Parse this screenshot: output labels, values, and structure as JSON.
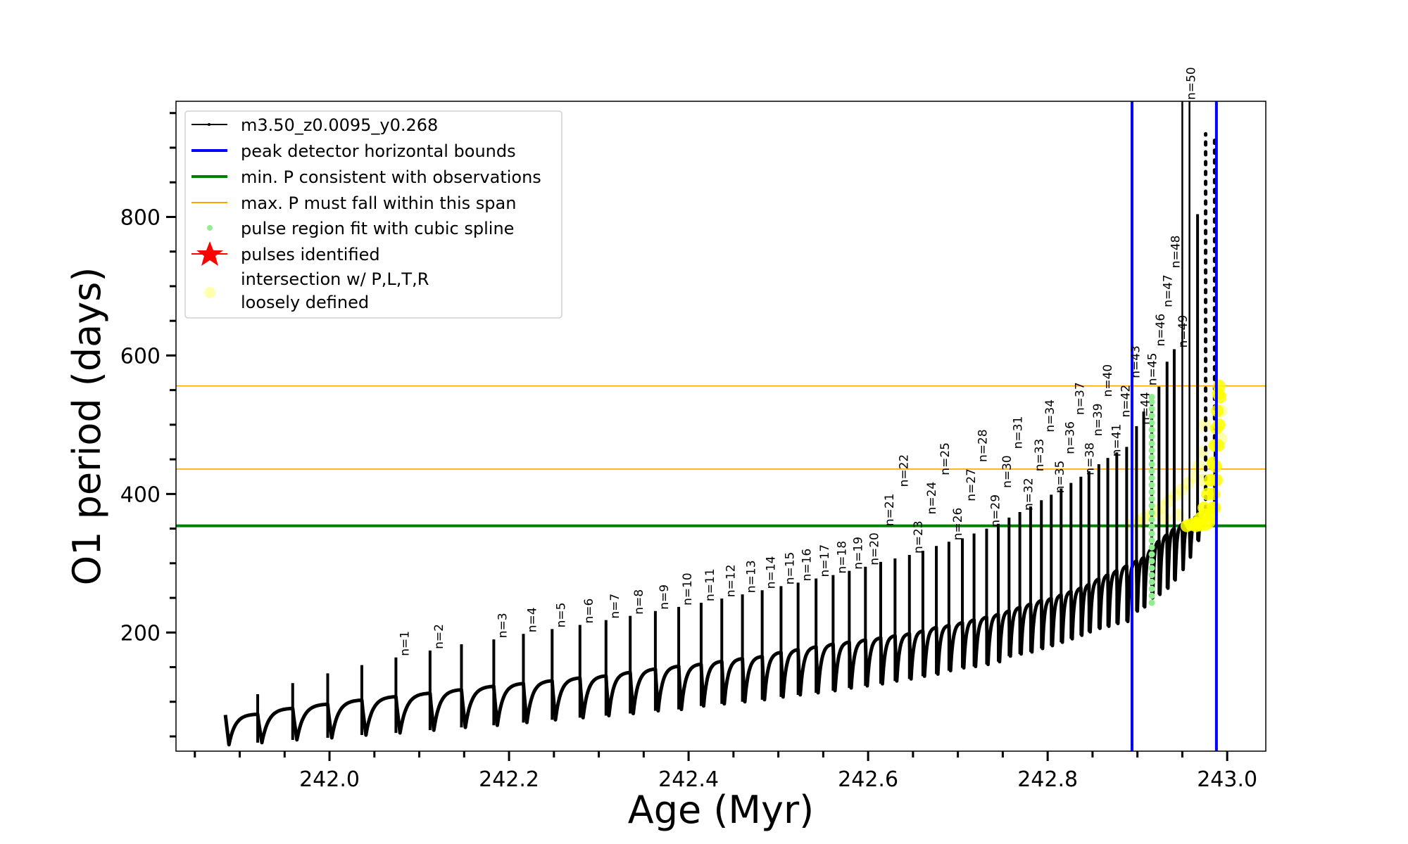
{
  "chart_data": {
    "type": "line",
    "xlabel": "Age (Myr)",
    "ylabel": "O1 period (days)",
    "xlim": [
      241.829,
      243.043
    ],
    "ylim": [
      28.7,
      967
    ],
    "grid": false,
    "legend_position": "top-left",
    "x_major_ticks": [
      242.0,
      242.2,
      242.4,
      242.6,
      242.8,
      243.0
    ],
    "x_tick_labels": [
      "242.0",
      "242.2",
      "242.4",
      "242.6",
      "242.8",
      "243.0"
    ],
    "x_minor_step": 0.05,
    "y_major_ticks": [
      200,
      400,
      600,
      800
    ],
    "y_tick_labels": [
      "200",
      "400",
      "600",
      "800"
    ],
    "y_minor_step": 50,
    "colors": {
      "model": "#000000",
      "bounds": "#0000ff",
      "min_p": "#008000",
      "max_p_span": "#ffa500",
      "spline": "#90ee90",
      "pulses": "#ff0000",
      "intersection": "#ffff00"
    },
    "legend": [
      {
        "label": "m3.50_z0.0095_y0.268",
        "marker": "line-dot",
        "color": "#000000"
      },
      {
        "label": "peak detector horizontal bounds",
        "marker": "thick-line",
        "color": "#0000ff"
      },
      {
        "label": "min. P consistent with observations",
        "marker": "thick-line",
        "color": "#008000"
      },
      {
        "label": "max. P must fall within this span",
        "marker": "thin-line",
        "color": "#ffa500"
      },
      {
        "label": "pulse region fit with cubic spline",
        "marker": "dot",
        "color": "#90ee90"
      },
      {
        "label": "pulses identified",
        "marker": "star",
        "color": "#ff0000"
      },
      {
        "label_lines": [
          "intersection w/ P,L,T,R",
          "loosely defined"
        ],
        "marker": "circle",
        "color": "#ffff99"
      }
    ],
    "vertical_bounds": [
      242.894,
      242.988
    ],
    "min_period": 354,
    "max_period_span": [
      436,
      556
    ],
    "model_start": {
      "t": 241.884,
      "value": 81,
      "trough": 38
    },
    "pulses": [
      {
        "t": 241.92,
        "plateau": 82.5,
        "peak": 111,
        "trough": 41,
        "label": ""
      },
      {
        "t": 241.959,
        "plateau": 91,
        "peak": 127,
        "trough": 45,
        "label": ""
      },
      {
        "t": 241.998,
        "plateau": 97,
        "peak": 141,
        "trough": 48,
        "label": ""
      },
      {
        "t": 242.036,
        "plateau": 103,
        "peak": 153,
        "trough": 52,
        "label": ""
      },
      {
        "t": 242.074,
        "plateau": 108,
        "peak": 164,
        "trough": 55,
        "label": "n=1"
      },
      {
        "t": 242.112,
        "plateau": 113,
        "peak": 174,
        "trough": 59,
        "label": "n=2"
      },
      {
        "t": 242.147,
        "plateau": 118,
        "peak": 183,
        "trough": 63,
        "label": ""
      },
      {
        "t": 242.183,
        "plateau": 123,
        "peak": 190,
        "trough": 66,
        "label": "n=3"
      },
      {
        "t": 242.216,
        "plateau": 127,
        "peak": 198,
        "trough": 70,
        "label": "n=4"
      },
      {
        "t": 242.248,
        "plateau": 131,
        "peak": 205,
        "trough": 74,
        "label": "n=5"
      },
      {
        "t": 242.279,
        "plateau": 135,
        "peak": 211,
        "trough": 77,
        "label": "n=6"
      },
      {
        "t": 242.308,
        "plateau": 138,
        "peak": 218,
        "trough": 80,
        "label": "n=7"
      },
      {
        "t": 242.335,
        "plateau": 143,
        "peak": 224,
        "trough": 83,
        "label": "n=8"
      },
      {
        "t": 242.363,
        "plateau": 148,
        "peak": 231,
        "trough": 87,
        "label": "n=9"
      },
      {
        "t": 242.389,
        "plateau": 152,
        "peak": 237,
        "trough": 89,
        "label": "n=10"
      },
      {
        "t": 242.414,
        "plateau": 155,
        "peak": 243,
        "trough": 94,
        "label": "n=11"
      },
      {
        "t": 242.437,
        "plateau": 159,
        "peak": 249,
        "trough": 97,
        "label": "n=12"
      },
      {
        "t": 242.46,
        "plateau": 163,
        "peak": 255,
        "trough": 100,
        "label": "n=13"
      },
      {
        "t": 242.482,
        "plateau": 166,
        "peak": 261,
        "trough": 103,
        "label": "n=14"
      },
      {
        "t": 242.503,
        "plateau": 172,
        "peak": 267,
        "trough": 107,
        "label": "n=15"
      },
      {
        "t": 242.522,
        "plateau": 176,
        "peak": 272,
        "trough": 110,
        "label": "n=16"
      },
      {
        "t": 242.542,
        "plateau": 180,
        "peak": 278,
        "trough": 113,
        "label": "n=17"
      },
      {
        "t": 242.561,
        "plateau": 184,
        "peak": 283,
        "trough": 116,
        "label": "n=18"
      },
      {
        "t": 242.579,
        "plateau": 187,
        "peak": 289,
        "trough": 120,
        "label": "n=19"
      },
      {
        "t": 242.597,
        "plateau": 190,
        "peak": 295,
        "trough": 123,
        "label": "n=20"
      },
      {
        "t": 242.614,
        "plateau": 193,
        "peak": 302,
        "trough": 126,
        "label": "n=21"
      },
      {
        "t": 242.63,
        "plateau": 196,
        "peak": 307,
        "trough": 130,
        "label": "n=22"
      },
      {
        "t": 242.646,
        "plateau": 199,
        "peak": 312,
        "trough": 133,
        "label": "n=23"
      },
      {
        "t": 242.661,
        "plateau": 203,
        "peak": 318,
        "trough": 137,
        "label": "n=24"
      },
      {
        "t": 242.676,
        "plateau": 208,
        "peak": 325,
        "trough": 140,
        "label": "n=25"
      },
      {
        "t": 242.69,
        "plateau": 211,
        "peak": 331,
        "trough": 145,
        "label": "n=26"
      },
      {
        "t": 242.705,
        "plateau": 215,
        "peak": 336,
        "trough": 149,
        "label": "n=27"
      },
      {
        "t": 242.718,
        "plateau": 219,
        "peak": 343,
        "trough": 151,
        "label": "n=28"
      },
      {
        "t": 242.732,
        "plateau": 223,
        "peak": 350,
        "trough": 154,
        "label": "n=29"
      },
      {
        "t": 242.745,
        "plateau": 227,
        "peak": 357,
        "trough": 158,
        "label": "n=30"
      },
      {
        "t": 242.757,
        "plateau": 232,
        "peak": 366,
        "trough": 166,
        "label": "n=31"
      },
      {
        "t": 242.769,
        "plateau": 237,
        "peak": 374,
        "trough": 169,
        "label": "n=32"
      },
      {
        "t": 242.781,
        "plateau": 242,
        "peak": 382,
        "trough": 172,
        "label": "n=33"
      },
      {
        "t": 242.793,
        "plateau": 247,
        "peak": 391,
        "trough": 177,
        "label": "n=34"
      },
      {
        "t": 242.804,
        "plateau": 250,
        "peak": 399,
        "trough": 181,
        "label": "n=35"
      },
      {
        "t": 242.815,
        "plateau": 255,
        "peak": 408,
        "trough": 186,
        "label": "n=36"
      },
      {
        "t": 242.826,
        "plateau": 260,
        "peak": 416,
        "trough": 191,
        "label": "n=37"
      },
      {
        "t": 242.837,
        "plateau": 265,
        "peak": 425,
        "trough": 196,
        "label": "n=38"
      },
      {
        "t": 242.846,
        "plateau": 270,
        "peak": 433,
        "trough": 201,
        "label": "n=39"
      },
      {
        "t": 242.857,
        "plateau": 278,
        "peak": 443,
        "trough": 206,
        "label": "n=40"
      },
      {
        "t": 242.867,
        "plateau": 284,
        "peak": 452,
        "trough": 209,
        "label": "n=41"
      },
      {
        "t": 242.877,
        "plateau": 290,
        "peak": 460,
        "trough": 213,
        "label": "n=42"
      },
      {
        "t": 242.888,
        "plateau": 297,
        "peak": 468,
        "trough": 216,
        "label": "n=43"
      },
      {
        "t": 242.899,
        "plateau": 304,
        "peak": 498,
        "trough": 231,
        "label": "n=44"
      },
      {
        "t": 242.907,
        "plateau": 309,
        "peak": 519,
        "trough": 237,
        "label": "n=45"
      },
      {
        "t": 242.916,
        "plateau": 321,
        "peak": 540,
        "trough": 250,
        "label": "n=46"
      },
      {
        "t": 242.924,
        "plateau": 333,
        "peak": 555,
        "trough": 255,
        "label": "n=47"
      },
      {
        "t": 242.933,
        "plateau": 342,
        "peak": 591,
        "trough": 264,
        "label": "n=48"
      },
      {
        "t": 242.941,
        "plateau": 351,
        "peak": 609,
        "trough": 276,
        "label": "n=49"
      },
      {
        "t": 242.95,
        "plateau": 357,
        "peak": 1000,
        "trough": 291,
        "label": "n=50"
      },
      {
        "t": 242.958,
        "plateau": 360,
        "peak": 1000,
        "trough": 309,
        "label": ""
      },
      {
        "t": 242.967,
        "plateau": 369,
        "peak": 804,
        "trough": 333,
        "label": ""
      },
      {
        "t": 242.976,
        "plateau": 375,
        "peak": 920,
        "trough": 378,
        "label": "",
        "dotted": true
      },
      {
        "t": 242.986,
        "plateau": 380,
        "peak": 915,
        "trough": 480,
        "label": "",
        "dotted": true
      }
    ],
    "spline_points": {
      "t": 242.916,
      "values": [
        243,
        253,
        263,
        273,
        283,
        293,
        303,
        313,
        323,
        333,
        343,
        353,
        363,
        373,
        383,
        393,
        403,
        413,
        423,
        433,
        443,
        453,
        463,
        473,
        483,
        493,
        503,
        513,
        523,
        533,
        540
      ]
    },
    "intersection_points_dense": [
      [
        242.955,
        354
      ],
      [
        242.96,
        356
      ],
      [
        242.965,
        358
      ],
      [
        242.97,
        365
      ],
      [
        242.974,
        380
      ],
      [
        242.978,
        400
      ],
      [
        242.981,
        420
      ],
      [
        242.984,
        445
      ],
      [
        242.986,
        470
      ],
      [
        242.988,
        495
      ],
      [
        242.989,
        520
      ],
      [
        242.99,
        545
      ],
      [
        242.991,
        556
      ],
      [
        242.992,
        540
      ],
      [
        242.985,
        400
      ],
      [
        242.982,
        370
      ],
      [
        242.976,
        356
      ],
      [
        242.97,
        355
      ],
      [
        242.986,
        380
      ],
      [
        242.988,
        420
      ],
      [
        242.99,
        470
      ],
      [
        242.991,
        500
      ],
      [
        242.98,
        360
      ],
      [
        242.984,
        380
      ],
      [
        242.987,
        440
      ],
      [
        242.965,
        354
      ],
      [
        242.975,
        370
      ]
    ],
    "intersection_points_faint": [
      [
        242.893,
        356
      ],
      [
        242.9,
        360
      ],
      [
        242.907,
        365
      ],
      [
        242.914,
        370
      ],
      [
        242.921,
        376
      ],
      [
        242.928,
        382
      ],
      [
        242.935,
        390
      ],
      [
        242.942,
        398
      ],
      [
        242.949,
        406
      ],
      [
        242.956,
        415
      ],
      [
        242.963,
        425
      ],
      [
        242.972,
        420
      ],
      [
        242.972,
        460
      ],
      [
        242.975,
        500
      ],
      [
        242.993,
        480
      ],
      [
        242.993,
        520
      ],
      [
        242.968,
        440
      ],
      [
        242.945,
        370
      ],
      [
        242.93,
        365
      ]
    ]
  }
}
